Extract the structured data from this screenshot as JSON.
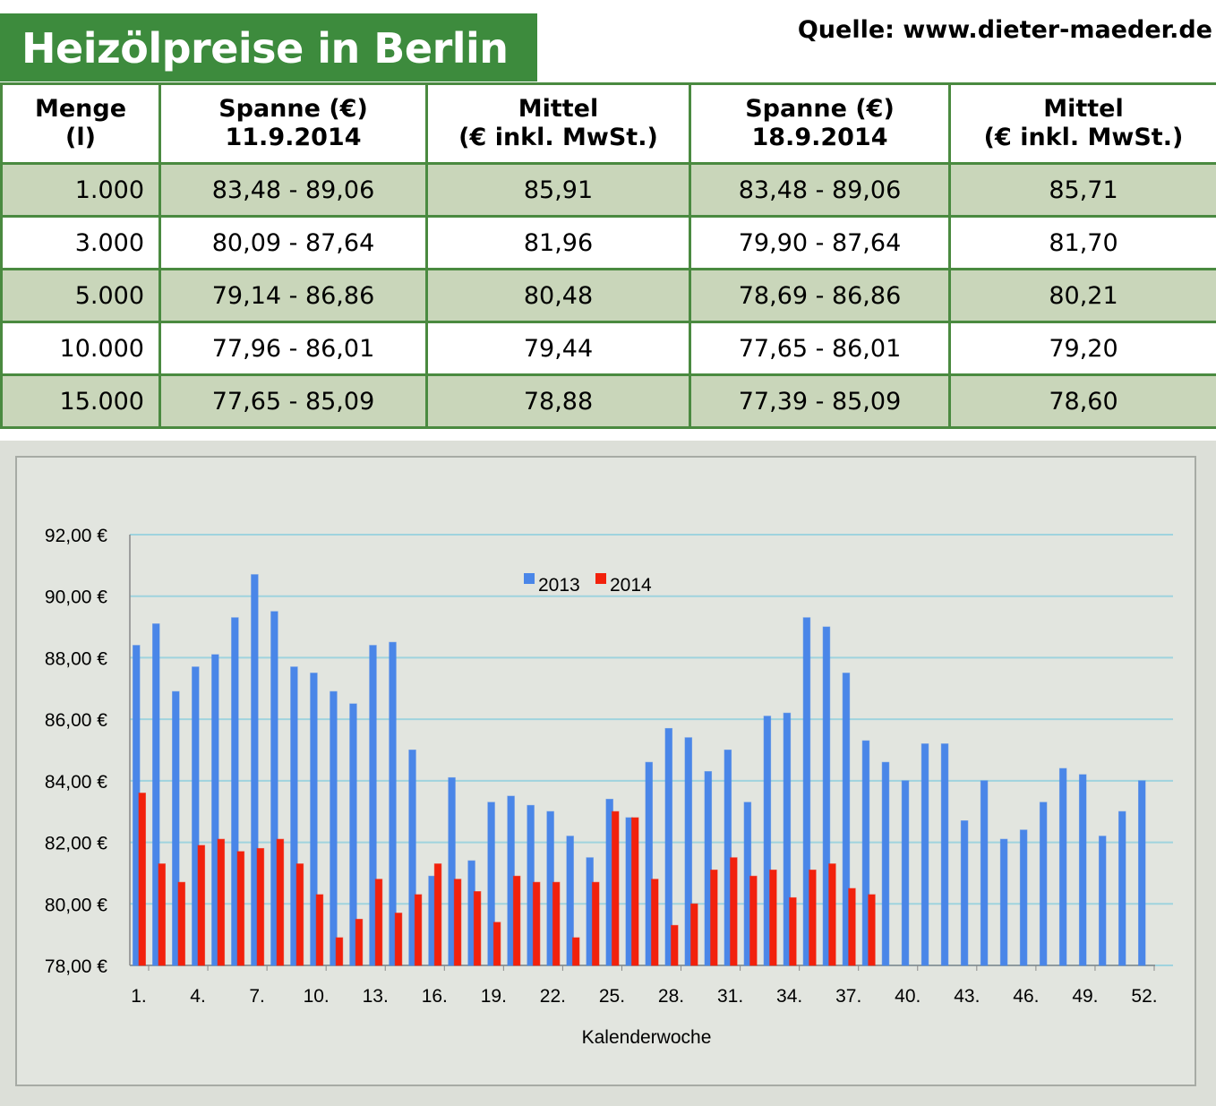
{
  "header": {
    "title": "Heizölpreise in Berlin",
    "source": "Quelle: www.dieter-maeder.de"
  },
  "table": {
    "columns": [
      [
        "Menge",
        "(l)"
      ],
      [
        "Spanne (€)",
        "11.9.2014"
      ],
      [
        "Mittel",
        "(€ inkl. MwSt.)"
      ],
      [
        "Spanne (€)",
        "18.9.2014"
      ],
      [
        "Mittel",
        "(€ inkl. MwSt.)"
      ]
    ],
    "rows": [
      [
        "1.000",
        "83,48 - 89,06",
        "85,91",
        "83,48 - 89,06",
        "85,71"
      ],
      [
        "3.000",
        "80,09 - 87,64",
        "81,96",
        "79,90 - 87,64",
        "81,70"
      ],
      [
        "5.000",
        "79,14 - 86,86",
        "80,48",
        "78,69 - 86,86",
        "80,21"
      ],
      [
        "10.000",
        "77,96 - 86,01",
        "79,44",
        "77,65 - 86,01",
        "79,20"
      ],
      [
        "15.000",
        "77,65 - 85,09",
        "78,88",
        "77,39 - 85,09",
        "78,60"
      ]
    ]
  },
  "chart_data": {
    "type": "bar",
    "x_label": "Kalenderwoche",
    "categories": [
      "1.",
      null,
      null,
      "4.",
      null,
      null,
      "7.",
      null,
      null,
      "10.",
      null,
      null,
      "13.",
      null,
      null,
      "16.",
      null,
      null,
      "19.",
      null,
      null,
      "22.",
      null,
      null,
      "25.",
      null,
      null,
      "28.",
      null,
      null,
      "31.",
      null,
      null,
      "34.",
      null,
      null,
      "37.",
      null,
      null,
      "40.",
      null,
      null,
      "43.",
      null,
      null,
      "46.",
      null,
      null,
      "49.",
      null,
      null,
      "52."
    ],
    "series": [
      {
        "name": "2013",
        "color": "#4a86e8",
        "values": [
          88.4,
          89.1,
          86.9,
          87.7,
          88.1,
          89.3,
          90.7,
          89.5,
          87.7,
          87.5,
          86.9,
          86.5,
          88.4,
          88.5,
          85.0,
          80.9,
          84.1,
          81.4,
          83.3,
          83.5,
          83.2,
          83.0,
          82.2,
          81.5,
          83.4,
          82.8,
          84.6,
          85.7,
          85.4,
          84.3,
          85.0,
          83.3,
          86.1,
          86.2,
          89.3,
          89.0,
          87.5,
          85.3,
          84.6,
          84.0,
          85.2,
          85.2,
          82.7,
          84.0,
          82.1,
          82.4,
          83.3,
          84.4,
          84.2,
          82.2,
          83.0,
          84.0
        ]
      },
      {
        "name": "2014",
        "color": "#f2210c",
        "values": [
          83.6,
          81.3,
          80.7,
          81.9,
          82.1,
          81.7,
          81.8,
          82.1,
          81.3,
          80.3,
          78.9,
          79.5,
          80.8,
          79.7,
          80.3,
          81.3,
          80.8,
          80.4,
          79.4,
          80.9,
          80.7,
          80.7,
          78.9,
          80.7,
          83.0,
          82.8,
          80.8,
          79.3,
          80.0,
          81.1,
          81.5,
          80.9,
          81.1,
          80.2,
          81.1,
          81.3,
          80.5,
          80.3,
          null,
          null,
          null,
          null,
          null,
          null,
          null,
          null,
          null,
          null,
          null,
          null,
          null,
          null
        ]
      }
    ],
    "ylim": [
      78,
      92
    ],
    "yticks": [
      {
        "value": 78,
        "label": "78,00 €"
      },
      {
        "value": 80,
        "label": "80,00 €"
      },
      {
        "value": 82,
        "label": "82,00 €"
      },
      {
        "value": 84,
        "label": "84,00 €"
      },
      {
        "value": 86,
        "label": "86,00 €"
      },
      {
        "value": 88,
        "label": "88,00 €"
      },
      {
        "value": 90,
        "label": "90,00 €"
      },
      {
        "value": 92,
        "label": "92,00 €"
      }
    ],
    "grid": true
  }
}
